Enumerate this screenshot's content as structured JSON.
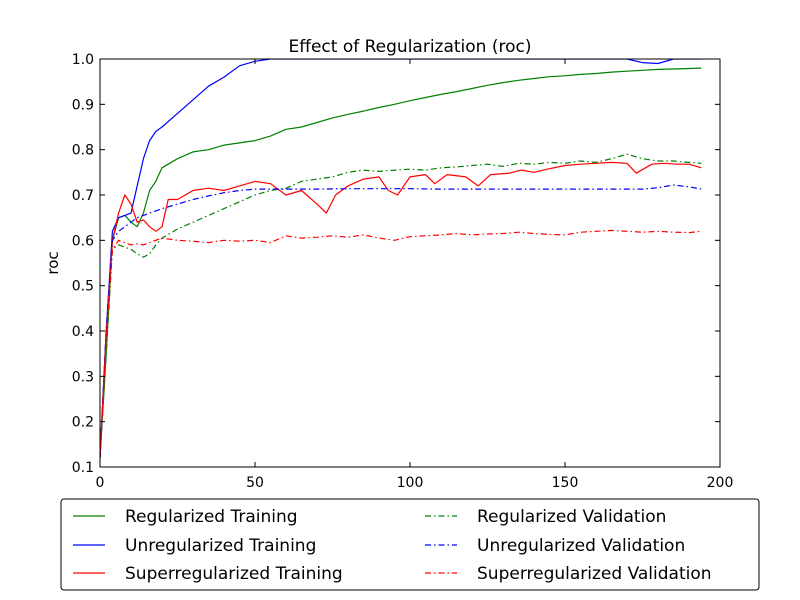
{
  "chart_data": {
    "type": "line",
    "title": "Effect of Regularization (roc)",
    "xlabel": "",
    "ylabel": "roc",
    "xlim": [
      0,
      200
    ],
    "ylim": [
      0.1,
      1.0
    ],
    "xticks": [
      0,
      50,
      100,
      150,
      200
    ],
    "yticks": [
      0.1,
      0.2,
      0.3,
      0.4,
      0.5,
      0.6,
      0.7,
      0.8,
      0.9,
      1.0
    ],
    "xtick_labels": [
      "0",
      "50",
      "100",
      "150",
      "200"
    ],
    "ytick_labels": [
      "0.1",
      "0.2",
      "0.3",
      "0.4",
      "0.5",
      "0.6",
      "0.7",
      "0.8",
      "0.9",
      "1.0"
    ],
    "grid": false,
    "legend_position": "below plot, two columns",
    "series": [
      {
        "name": "Regularized Training",
        "color": "#008000",
        "style": "solid",
        "points": [
          [
            0,
            0.12
          ],
          [
            2,
            0.35
          ],
          [
            4,
            0.6
          ],
          [
            6,
            0.65
          ],
          [
            8,
            0.655
          ],
          [
            10,
            0.64
          ],
          [
            12,
            0.63
          ],
          [
            14,
            0.66
          ],
          [
            16,
            0.71
          ],
          [
            18,
            0.73
          ],
          [
            20,
            0.76
          ],
          [
            25,
            0.78
          ],
          [
            30,
            0.795
          ],
          [
            35,
            0.8
          ],
          [
            40,
            0.81
          ],
          [
            45,
            0.815
          ],
          [
            50,
            0.82
          ],
          [
            55,
            0.83
          ],
          [
            60,
            0.845
          ],
          [
            65,
            0.85
          ],
          [
            70,
            0.86
          ],
          [
            75,
            0.87
          ],
          [
            80,
            0.878
          ],
          [
            85,
            0.885
          ],
          [
            90,
            0.893
          ],
          [
            95,
            0.9
          ],
          [
            100,
            0.908
          ],
          [
            105,
            0.915
          ],
          [
            110,
            0.922
          ],
          [
            115,
            0.928
          ],
          [
            120,
            0.935
          ],
          [
            125,
            0.942
          ],
          [
            130,
            0.948
          ],
          [
            135,
            0.953
          ],
          [
            140,
            0.957
          ],
          [
            145,
            0.961
          ],
          [
            150,
            0.963
          ],
          [
            155,
            0.966
          ],
          [
            160,
            0.968
          ],
          [
            165,
            0.971
          ],
          [
            170,
            0.973
          ],
          [
            175,
            0.975
          ],
          [
            180,
            0.977
          ],
          [
            185,
            0.978
          ],
          [
            190,
            0.979
          ],
          [
            194,
            0.98
          ]
        ]
      },
      {
        "name": "Unregularized Training",
        "color": "#0000ff",
        "style": "solid",
        "points": [
          [
            0,
            0.12
          ],
          [
            2,
            0.4
          ],
          [
            4,
            0.62
          ],
          [
            6,
            0.65
          ],
          [
            8,
            0.655
          ],
          [
            10,
            0.66
          ],
          [
            12,
            0.72
          ],
          [
            14,
            0.78
          ],
          [
            16,
            0.82
          ],
          [
            18,
            0.84
          ],
          [
            20,
            0.85
          ],
          [
            25,
            0.88
          ],
          [
            30,
            0.91
          ],
          [
            35,
            0.94
          ],
          [
            40,
            0.96
          ],
          [
            45,
            0.985
          ],
          [
            50,
            0.995
          ],
          [
            55,
            1.0
          ],
          [
            60,
            1.0
          ],
          [
            70,
            1.0
          ],
          [
            80,
            1.0
          ],
          [
            90,
            1.0
          ],
          [
            100,
            1.0
          ],
          [
            110,
            1.0
          ],
          [
            120,
            1.0
          ],
          [
            130,
            1.0
          ],
          [
            140,
            1.0
          ],
          [
            150,
            1.0
          ],
          [
            160,
            1.0
          ],
          [
            170,
            1.0
          ],
          [
            175,
            0.992
          ],
          [
            180,
            0.99
          ],
          [
            185,
            1.0
          ],
          [
            190,
            1.0
          ],
          [
            194,
            1.0
          ]
        ]
      },
      {
        "name": "Superregularized Training",
        "color": "#ff0000",
        "style": "solid",
        "points": [
          [
            0,
            0.12
          ],
          [
            2,
            0.4
          ],
          [
            4,
            0.6
          ],
          [
            6,
            0.66
          ],
          [
            8,
            0.7
          ],
          [
            10,
            0.68
          ],
          [
            12,
            0.64
          ],
          [
            14,
            0.645
          ],
          [
            16,
            0.63
          ],
          [
            18,
            0.62
          ],
          [
            20,
            0.63
          ],
          [
            22,
            0.69
          ],
          [
            25,
            0.69
          ],
          [
            30,
            0.71
          ],
          [
            35,
            0.715
          ],
          [
            40,
            0.71
          ],
          [
            45,
            0.72
          ],
          [
            50,
            0.73
          ],
          [
            55,
            0.725
          ],
          [
            60,
            0.7
          ],
          [
            65,
            0.71
          ],
          [
            70,
            0.68
          ],
          [
            73,
            0.66
          ],
          [
            76,
            0.7
          ],
          [
            80,
            0.72
          ],
          [
            85,
            0.735
          ],
          [
            90,
            0.74
          ],
          [
            93,
            0.71
          ],
          [
            96,
            0.7
          ],
          [
            100,
            0.74
          ],
          [
            105,
            0.745
          ],
          [
            108,
            0.725
          ],
          [
            112,
            0.745
          ],
          [
            118,
            0.74
          ],
          [
            122,
            0.72
          ],
          [
            126,
            0.745
          ],
          [
            132,
            0.748
          ],
          [
            136,
            0.755
          ],
          [
            140,
            0.75
          ],
          [
            145,
            0.758
          ],
          [
            150,
            0.765
          ],
          [
            155,
            0.768
          ],
          [
            160,
            0.77
          ],
          [
            165,
            0.772
          ],
          [
            170,
            0.77
          ],
          [
            173,
            0.748
          ],
          [
            178,
            0.768
          ],
          [
            182,
            0.77
          ],
          [
            186,
            0.768
          ],
          [
            190,
            0.768
          ],
          [
            194,
            0.76
          ]
        ]
      },
      {
        "name": "Regularized Validation",
        "color": "#008000",
        "style": "dashdot",
        "points": [
          [
            0,
            0.12
          ],
          [
            2,
            0.35
          ],
          [
            4,
            0.58
          ],
          [
            6,
            0.59
          ],
          [
            8,
            0.585
          ],
          [
            10,
            0.58
          ],
          [
            12,
            0.57
          ],
          [
            14,
            0.563
          ],
          [
            16,
            0.57
          ],
          [
            18,
            0.59
          ],
          [
            20,
            0.605
          ],
          [
            25,
            0.625
          ],
          [
            30,
            0.64
          ],
          [
            35,
            0.655
          ],
          [
            40,
            0.67
          ],
          [
            45,
            0.685
          ],
          [
            50,
            0.7
          ],
          [
            55,
            0.71
          ],
          [
            60,
            0.715
          ],
          [
            65,
            0.73
          ],
          [
            70,
            0.735
          ],
          [
            75,
            0.74
          ],
          [
            80,
            0.75
          ],
          [
            85,
            0.755
          ],
          [
            90,
            0.752
          ],
          [
            95,
            0.755
          ],
          [
            100,
            0.757
          ],
          [
            105,
            0.755
          ],
          [
            110,
            0.76
          ],
          [
            115,
            0.762
          ],
          [
            120,
            0.765
          ],
          [
            125,
            0.768
          ],
          [
            130,
            0.763
          ],
          [
            135,
            0.77
          ],
          [
            140,
            0.768
          ],
          [
            145,
            0.772
          ],
          [
            150,
            0.77
          ],
          [
            155,
            0.775
          ],
          [
            160,
            0.772
          ],
          [
            165,
            0.78
          ],
          [
            170,
            0.79
          ],
          [
            175,
            0.78
          ],
          [
            180,
            0.775
          ],
          [
            185,
            0.775
          ],
          [
            190,
            0.772
          ],
          [
            194,
            0.77
          ]
        ]
      },
      {
        "name": "Unregularized Validation",
        "color": "#0000ff",
        "style": "dashdot",
        "points": [
          [
            0,
            0.12
          ],
          [
            2,
            0.4
          ],
          [
            4,
            0.6
          ],
          [
            6,
            0.62
          ],
          [
            8,
            0.63
          ],
          [
            10,
            0.64
          ],
          [
            12,
            0.65
          ],
          [
            14,
            0.655
          ],
          [
            16,
            0.66
          ],
          [
            18,
            0.665
          ],
          [
            20,
            0.67
          ],
          [
            25,
            0.68
          ],
          [
            30,
            0.69
          ],
          [
            35,
            0.698
          ],
          [
            40,
            0.705
          ],
          [
            45,
            0.71
          ],
          [
            50,
            0.713
          ],
          [
            55,
            0.713
          ],
          [
            60,
            0.713
          ],
          [
            70,
            0.713
          ],
          [
            80,
            0.714
          ],
          [
            90,
            0.714
          ],
          [
            100,
            0.714
          ],
          [
            110,
            0.713
          ],
          [
            120,
            0.713
          ],
          [
            130,
            0.713
          ],
          [
            140,
            0.713
          ],
          [
            150,
            0.713
          ],
          [
            160,
            0.713
          ],
          [
            170,
            0.713
          ],
          [
            175,
            0.713
          ],
          [
            180,
            0.716
          ],
          [
            185,
            0.722
          ],
          [
            190,
            0.718
          ],
          [
            194,
            0.713
          ]
        ]
      },
      {
        "name": "Superregularized Validation",
        "color": "#ff0000",
        "style": "dashdot",
        "points": [
          [
            0,
            0.12
          ],
          [
            2,
            0.38
          ],
          [
            4,
            0.58
          ],
          [
            6,
            0.6
          ],
          [
            8,
            0.595
          ],
          [
            10,
            0.59
          ],
          [
            12,
            0.592
          ],
          [
            14,
            0.59
          ],
          [
            16,
            0.595
          ],
          [
            18,
            0.6
          ],
          [
            20,
            0.605
          ],
          [
            25,
            0.6
          ],
          [
            30,
            0.598
          ],
          [
            35,
            0.595
          ],
          [
            40,
            0.6
          ],
          [
            45,
            0.598
          ],
          [
            50,
            0.6
          ],
          [
            55,
            0.595
          ],
          [
            60,
            0.61
          ],
          [
            65,
            0.605
          ],
          [
            70,
            0.607
          ],
          [
            75,
            0.61
          ],
          [
            80,
            0.607
          ],
          [
            85,
            0.612
          ],
          [
            90,
            0.605
          ],
          [
            95,
            0.6
          ],
          [
            100,
            0.608
          ],
          [
            105,
            0.61
          ],
          [
            110,
            0.612
          ],
          [
            115,
            0.615
          ],
          [
            120,
            0.612
          ],
          [
            125,
            0.614
          ],
          [
            130,
            0.615
          ],
          [
            135,
            0.618
          ],
          [
            140,
            0.615
          ],
          [
            145,
            0.613
          ],
          [
            150,
            0.612
          ],
          [
            155,
            0.618
          ],
          [
            160,
            0.62
          ],
          [
            165,
            0.622
          ],
          [
            170,
            0.62
          ],
          [
            175,
            0.618
          ],
          [
            180,
            0.62
          ],
          [
            185,
            0.618
          ],
          [
            190,
            0.617
          ],
          [
            194,
            0.62
          ]
        ]
      }
    ]
  }
}
